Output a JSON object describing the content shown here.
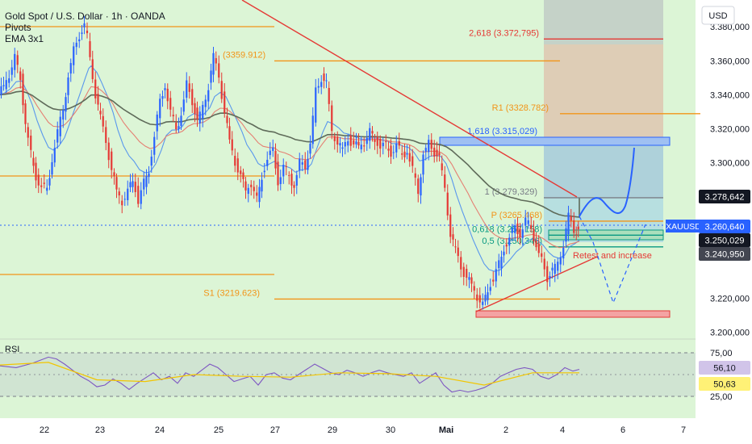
{
  "chart_data": {
    "type": "candlestick",
    "title": "Gold Spot / U.S. Dollar · 1h · OANDA",
    "indicators": [
      "Pivots",
      "EMA 3x1"
    ],
    "currency": "USD",
    "symbol": "XAUUSD",
    "x_ticks": [
      "22",
      "23",
      "24",
      "25",
      "27",
      "29",
      "30",
      "Mai",
      "2",
      "4",
      "6",
      "7"
    ],
    "y_ticks": [
      "3.380,000",
      "3.360,000",
      "3.340,000",
      "3.320,000",
      "3.300,000",
      "3.220,000",
      "3.200,000"
    ],
    "ylim": [
      3196,
      3392
    ],
    "price_points": [
      [
        0,
        3340
      ],
      [
        6,
        3345
      ],
      [
        13,
        3352
      ],
      [
        20,
        3362
      ],
      [
        27,
        3350
      ],
      [
        33,
        3322
      ],
      [
        40,
        3305
      ],
      [
        46,
        3292
      ],
      [
        53,
        3286
      ],
      [
        60,
        3284
      ],
      [
        66,
        3302
      ],
      [
        73,
        3318
      ],
      [
        80,
        3332
      ],
      [
        86,
        3350
      ],
      [
        93,
        3366
      ],
      [
        100,
        3375
      ],
      [
        106,
        3380
      ],
      [
        110,
        3374
      ],
      [
        113,
        3362
      ],
      [
        120,
        3340
      ],
      [
        126,
        3326
      ],
      [
        133,
        3312
      ],
      [
        140,
        3296
      ],
      [
        146,
        3283
      ],
      [
        153,
        3277
      ],
      [
        160,
        3283
      ],
      [
        166,
        3290
      ],
      [
        173,
        3278
      ],
      [
        180,
        3288
      ],
      [
        186,
        3296
      ],
      [
        193,
        3316
      ],
      [
        200,
        3336
      ],
      [
        206,
        3346
      ],
      [
        213,
        3330
      ],
      [
        220,
        3320
      ],
      [
        226,
        3328
      ],
      [
        233,
        3346
      ],
      [
        240,
        3336
      ],
      [
        246,
        3324
      ],
      [
        253,
        3332
      ],
      [
        260,
        3345
      ],
      [
        266,
        3362
      ],
      [
        273,
        3350
      ],
      [
        280,
        3330
      ],
      [
        286,
        3312
      ],
      [
        293,
        3300
      ],
      [
        300,
        3292
      ],
      [
        306,
        3284
      ],
      [
        313,
        3288
      ],
      [
        320,
        3278
      ],
      [
        326,
        3292
      ],
      [
        333,
        3303
      ],
      [
        340,
        3307
      ],
      [
        346,
        3289
      ],
      [
        353,
        3298
      ],
      [
        360,
        3292
      ],
      [
        366,
        3286
      ],
      [
        373,
        3300
      ],
      [
        380,
        3298
      ],
      [
        386,
        3310
      ],
      [
        393,
        3342
      ],
      [
        400,
        3350
      ],
      [
        406,
        3346
      ],
      [
        413,
        3318
      ],
      [
        420,
        3312
      ],
      [
        426,
        3307
      ],
      [
        433,
        3314
      ],
      [
        440,
        3310
      ],
      [
        446,
        3310
      ],
      [
        453,
        3312
      ],
      [
        460,
        3318
      ],
      [
        466,
        3314
      ],
      [
        473,
        3310
      ],
      [
        480,
        3310
      ],
      [
        486,
        3306
      ],
      [
        493,
        3311
      ],
      [
        500,
        3304
      ],
      [
        506,
        3307
      ],
      [
        513,
        3296
      ],
      [
        520,
        3283
      ],
      [
        526,
        3304
      ],
      [
        533,
        3311
      ],
      [
        540,
        3306
      ],
      [
        546,
        3302
      ],
      [
        553,
        3284
      ],
      [
        560,
        3258
      ],
      [
        566,
        3248
      ],
      [
        573,
        3238
      ],
      [
        580,
        3232
      ],
      [
        586,
        3228
      ],
      [
        593,
        3221
      ],
      [
        600,
        3216
      ],
      [
        606,
        3225
      ],
      [
        613,
        3232
      ],
      [
        620,
        3240
      ],
      [
        626,
        3250
      ],
      [
        633,
        3256
      ],
      [
        640,
        3262
      ],
      [
        646,
        3258
      ],
      [
        653,
        3266
      ],
      [
        660,
        3262
      ],
      [
        666,
        3250
      ],
      [
        673,
        3242
      ],
      [
        680,
        3232
      ],
      [
        686,
        3236
      ],
      [
        693,
        3240
      ],
      [
        700,
        3252
      ],
      [
        706,
        3268
      ],
      [
        713,
        3259
      ],
      [
        718,
        3261
      ]
    ],
    "rsi_ticks": [
      "75,00",
      "25,00"
    ],
    "rsi_values": [
      [
        0,
        60
      ],
      [
        20,
        58
      ],
      [
        40,
        63
      ],
      [
        60,
        70
      ],
      [
        70,
        68
      ],
      [
        80,
        62
      ],
      [
        90,
        55
      ],
      [
        100,
        48
      ],
      [
        110,
        43
      ],
      [
        120,
        36
      ],
      [
        130,
        38
      ],
      [
        140,
        45
      ],
      [
        150,
        40
      ],
      [
        160,
        33
      ],
      [
        170,
        40
      ],
      [
        180,
        46
      ],
      [
        190,
        52
      ],
      [
        200,
        44
      ],
      [
        210,
        48
      ],
      [
        220,
        40
      ],
      [
        230,
        52
      ],
      [
        240,
        48
      ],
      [
        250,
        55
      ],
      [
        260,
        62
      ],
      [
        270,
        58
      ],
      [
        280,
        50
      ],
      [
        290,
        42
      ],
      [
        300,
        45
      ],
      [
        310,
        48
      ],
      [
        320,
        38
      ],
      [
        330,
        50
      ],
      [
        340,
        52
      ],
      [
        350,
        46
      ],
      [
        360,
        44
      ],
      [
        370,
        50
      ],
      [
        380,
        56
      ],
      [
        390,
        62
      ],
      [
        400,
        57
      ],
      [
        410,
        52
      ],
      [
        420,
        50
      ],
      [
        430,
        55
      ],
      [
        440,
        52
      ],
      [
        450,
        48
      ],
      [
        460,
        52
      ],
      [
        470,
        55
      ],
      [
        480,
        52
      ],
      [
        490,
        50
      ],
      [
        500,
        48
      ],
      [
        510,
        52
      ],
      [
        520,
        40
      ],
      [
        530,
        46
      ],
      [
        540,
        52
      ],
      [
        550,
        38
      ],
      [
        560,
        30
      ],
      [
        570,
        32
      ],
      [
        580,
        30
      ],
      [
        590,
        32
      ],
      [
        600,
        35
      ],
      [
        610,
        40
      ],
      [
        620,
        48
      ],
      [
        630,
        52
      ],
      [
        640,
        56
      ],
      [
        650,
        58
      ],
      [
        660,
        56
      ],
      [
        670,
        48
      ],
      [
        680,
        45
      ],
      [
        690,
        50
      ],
      [
        700,
        58
      ],
      [
        710,
        54
      ],
      [
        718,
        56
      ]
    ],
    "rsi_ma": [
      [
        0,
        61
      ],
      [
        60,
        64
      ],
      [
        120,
        44
      ],
      [
        180,
        42
      ],
      [
        240,
        50
      ],
      [
        300,
        48
      ],
      [
        360,
        47
      ],
      [
        420,
        52
      ],
      [
        480,
        51
      ],
      [
        540,
        48
      ],
      [
        600,
        38
      ],
      [
        660,
        52
      ],
      [
        700,
        52
      ],
      [
        718,
        52
      ]
    ],
    "levels": [
      {
        "label": "2,618 (3.372,795)",
        "price": 3372.8,
        "color": "#e53935"
      },
      {
        "label": "(3359.912)",
        "price": 3359.9,
        "color": "#f29418"
      },
      {
        "label": "R1 (3328.782)",
        "price": 3328.8,
        "color": "#f29418"
      },
      {
        "label": "1,618 (3.315,029)",
        "price": 3315.0,
        "color": "#2962ff"
      },
      {
        "label": "1 (3.279,329)",
        "price": 3279.3,
        "color": "#787b86"
      },
      {
        "label": "P (3265.468)",
        "price": 3265.5,
        "color": "#f29418"
      },
      {
        "label": "0,618 (3.257,158)",
        "price": 3257.2,
        "color": "#089981"
      },
      {
        "label": "0,5 (3.250,346)",
        "price": 3250.3,
        "color": "#089981"
      },
      {
        "label": "S1 (3219.623)",
        "price": 3219.6,
        "color": "#f29418"
      }
    ],
    "annotation": "Retest and increase",
    "price_badges": [
      {
        "value": "3.278,642",
        "price": 3278.6,
        "bg": "#131722",
        "fg": "#ffffff"
      },
      {
        "value": "3.260,640",
        "price": 3260.6,
        "bg": "#2962ff",
        "fg": "#ffffff"
      },
      {
        "value": "3.250,029",
        "price": 3250.0,
        "bg": "#131722",
        "fg": "#ffffff"
      },
      {
        "value": "3.240,950",
        "price": 3240.9,
        "bg": "#434651",
        "fg": "#ffffff"
      }
    ],
    "rsi_badges": [
      {
        "value": "56,10",
        "bg": "#d1c4e9",
        "fg": "#131722"
      },
      {
        "value": "50,63",
        "bg": "#fff176",
        "fg": "#131722"
      }
    ],
    "colors": {
      "background": "#dcf5d6",
      "up": "#2962ff",
      "down": "#e53935",
      "ema": "#5f6b5a"
    }
  }
}
